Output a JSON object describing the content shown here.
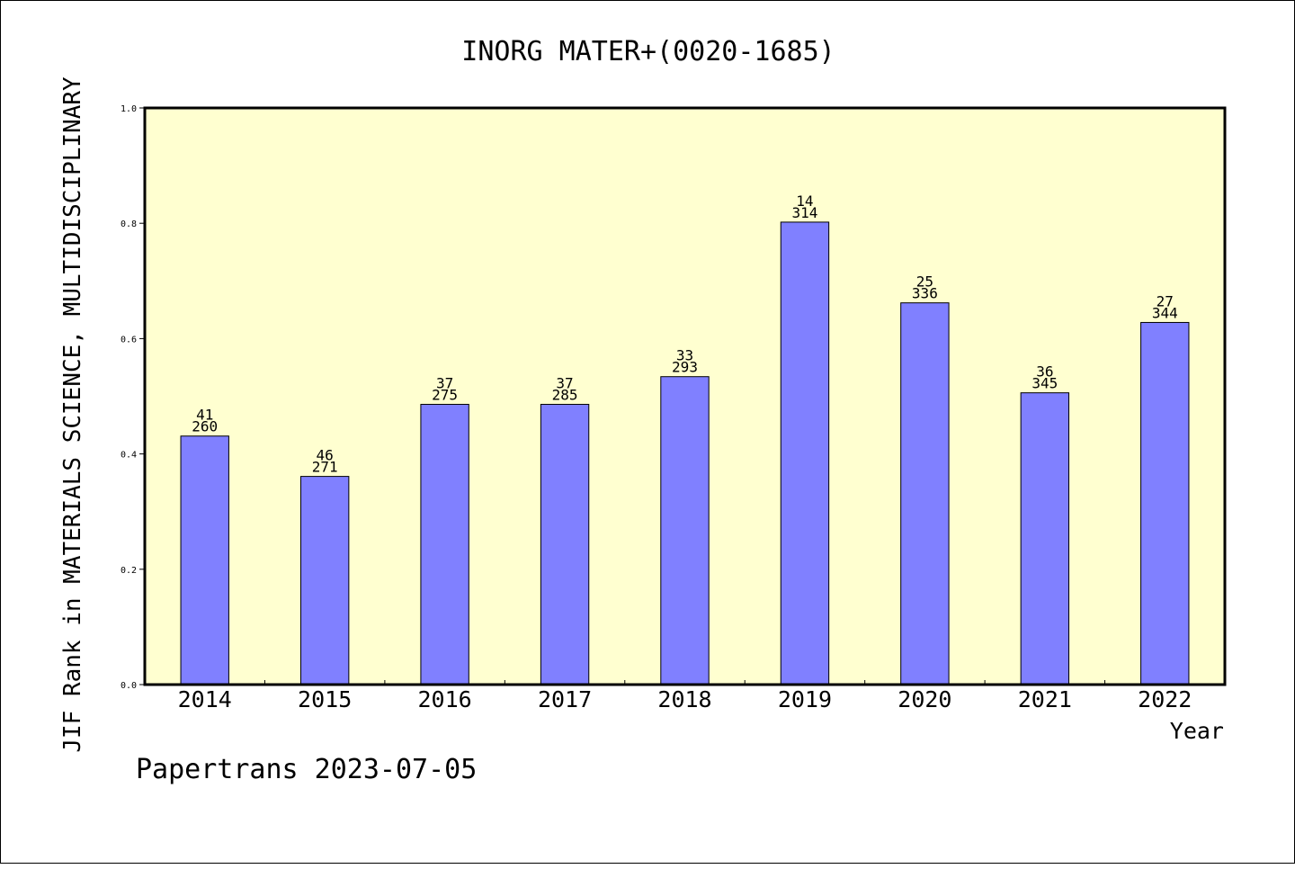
{
  "chart_data": {
    "type": "bar",
    "title": "INORG MATER+(0020-1685)",
    "xlabel": "Year",
    "ylabel": "JIF Rank in MATERIALS SCIENCE, MULTIDISCIPLINARY",
    "ylim": [
      0.0,
      1.0
    ],
    "yticks": [
      "0.0",
      "0.2",
      "0.4",
      "0.6",
      "0.8",
      "1.0"
    ],
    "ytick_values": [
      0.0,
      0.2,
      0.4,
      0.6,
      0.8,
      1.0
    ],
    "categories": [
      "2014",
      "2015",
      "2016",
      "2017",
      "2018",
      "2019",
      "2020",
      "2021",
      "2022"
    ],
    "values": [
      0.431,
      0.361,
      0.486,
      0.486,
      0.534,
      0.802,
      0.662,
      0.506,
      0.628
    ],
    "labels_top": [
      "41",
      "46",
      "37",
      "37",
      "33",
      "14",
      "25",
      "36",
      "27"
    ],
    "labels_bottom": [
      "260",
      "271",
      "275",
      "285",
      "293",
      "314",
      "336",
      "345",
      "344"
    ],
    "grid": false,
    "colors": {
      "bar": "#8080ff",
      "plot_bg": "#ffffd0",
      "axis": "#000000"
    }
  },
  "footer": "Papertrans 2023-07-05"
}
